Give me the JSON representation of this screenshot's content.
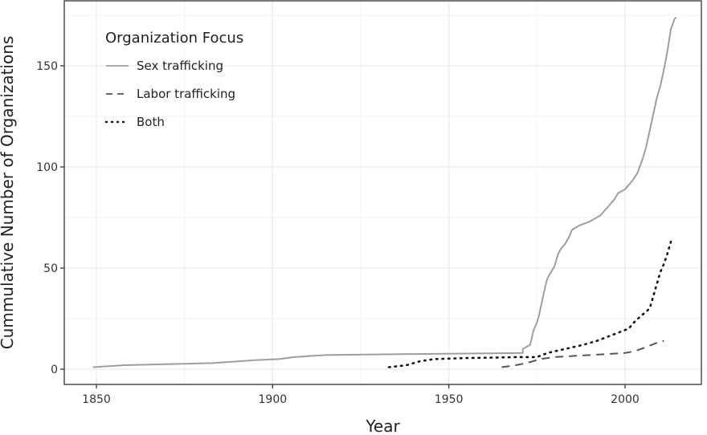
{
  "chart_data": {
    "type": "line",
    "title": "",
    "xlabel": "Year",
    "ylabel": "Cummulative Number of Organizations",
    "xlim": [
      1842,
      2022
    ],
    "ylim": [
      -7,
      183
    ],
    "x_ticks": [
      1850,
      1900,
      1950,
      2000
    ],
    "y_ticks": [
      0,
      50,
      100,
      150
    ],
    "grid": true,
    "legend": {
      "title": "Organization Focus",
      "position": "top-left inside",
      "entries": [
        {
          "label": "Sex trafficking",
          "style": "solid",
          "color": "#9e9e9e"
        },
        {
          "label": "Labor trafficking",
          "style": "dashed",
          "color": "#555555"
        },
        {
          "label": "Both",
          "style": "dotted",
          "color": "#111111"
        }
      ]
    },
    "series": [
      {
        "name": "Sex trafficking",
        "style": "solid",
        "color": "#9e9e9e",
        "step": false,
        "points": [
          [
            1849,
            1
          ],
          [
            1858,
            2
          ],
          [
            1870,
            2.5
          ],
          [
            1883,
            3
          ],
          [
            1895,
            4.5
          ],
          [
            1902,
            5
          ],
          [
            1906,
            6
          ],
          [
            1915,
            7
          ],
          [
            1940,
            7.5
          ],
          [
            1971,
            8
          ],
          [
            1971,
            10
          ],
          [
            1973,
            12
          ],
          [
            1973.5,
            15
          ],
          [
            1974,
            19
          ],
          [
            1975,
            23
          ],
          [
            1975.5,
            26
          ],
          [
            1976,
            30
          ],
          [
            1976.5,
            34
          ],
          [
            1977,
            38
          ],
          [
            1977.5,
            42
          ],
          [
            1978,
            45
          ],
          [
            1979,
            48
          ],
          [
            1980,
            51
          ],
          [
            1980.5,
            54
          ],
          [
            1981,
            57
          ],
          [
            1982,
            60
          ],
          [
            1983,
            62
          ],
          [
            1984,
            65
          ],
          [
            1985,
            69
          ],
          [
            1987,
            71
          ],
          [
            1990,
            73
          ],
          [
            1993,
            76
          ],
          [
            1995,
            80
          ],
          [
            1997,
            84
          ],
          [
            1998,
            87
          ],
          [
            2000,
            89
          ],
          [
            2002,
            93
          ],
          [
            2003.5,
            97
          ],
          [
            2005,
            104
          ],
          [
            2006,
            110
          ],
          [
            2007,
            118
          ],
          [
            2008,
            126
          ],
          [
            2009,
            134
          ],
          [
            2010,
            140
          ],
          [
            2011,
            148
          ],
          [
            2012,
            157
          ],
          [
            2013,
            168
          ],
          [
            2014,
            173
          ],
          [
            2014.5,
            174
          ]
        ]
      },
      {
        "name": "Labor trafficking",
        "style": "dashed",
        "color": "#555555",
        "points": [
          [
            1965,
            1
          ],
          [
            1969,
            2
          ],
          [
            1972,
            3
          ],
          [
            1974,
            4
          ],
          [
            1976,
            5
          ],
          [
            1980,
            6
          ],
          [
            1985,
            6.5
          ],
          [
            1990,
            7
          ],
          [
            1995,
            7.5
          ],
          [
            2000,
            8
          ],
          [
            2003,
            9
          ],
          [
            2006,
            11
          ],
          [
            2009,
            13
          ],
          [
            2011,
            14
          ]
        ]
      },
      {
        "name": "Both",
        "style": "dotted",
        "color": "#111111",
        "points": [
          [
            1933,
            1
          ],
          [
            1938,
            2
          ],
          [
            1942,
            4
          ],
          [
            1946,
            5
          ],
          [
            1955,
            5.5
          ],
          [
            1970,
            6
          ],
          [
            1975,
            6
          ],
          [
            1978,
            8
          ],
          [
            1983,
            10
          ],
          [
            1988,
            12
          ],
          [
            1992,
            14
          ],
          [
            1995,
            16
          ],
          [
            1998,
            18
          ],
          [
            2001,
            20
          ],
          [
            2003,
            24
          ],
          [
            2005,
            27
          ],
          [
            2007,
            30
          ],
          [
            2008,
            36
          ],
          [
            2009,
            42
          ],
          [
            2010,
            48
          ],
          [
            2011,
            52
          ],
          [
            2012,
            57
          ],
          [
            2013,
            63
          ]
        ]
      }
    ]
  }
}
